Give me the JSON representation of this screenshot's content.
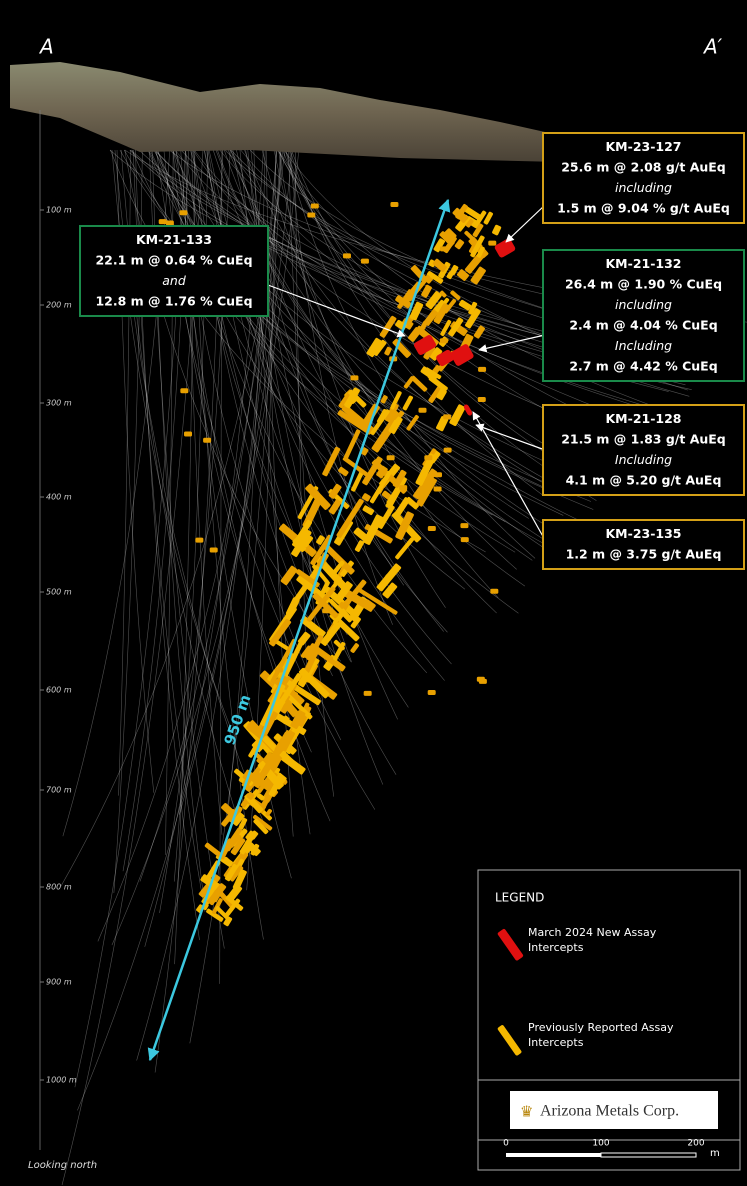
{
  "section_labels": {
    "left": "A",
    "right": "A′"
  },
  "depth_labels": [
    "100 m",
    "200 m",
    "300 m",
    "400 m",
    "500 m",
    "600 m",
    "700 m",
    "800 m",
    "900 m",
    "1000 m"
  ],
  "measure": "950 m",
  "callouts": [
    {
      "hole": "KM-21-133",
      "lines": [
        "22.1 m @ 0.64 % CuEq",
        "and",
        "12.8 m @ 1.76 % CuEq"
      ]
    },
    {
      "hole": "KM-23-127",
      "lines": [
        "25.6 m @ 2.08 g/t AuEq",
        "including",
        "1.5 m @ 9.04 % g/t AuEq"
      ]
    },
    {
      "hole": "KM-21-132",
      "lines": [
        "26.4 m @ 1.90 % CuEq",
        "including",
        "2.4 m @ 4.04 % CuEq",
        "Including",
        "2.7 m @ 4.42 % CuEq"
      ]
    },
    {
      "hole": "KM-21-128",
      "lines": [
        "21.5 m @ 1.83 g/t AuEq",
        "Including",
        "4.1 m @ 5.20 g/t AuEq"
      ]
    },
    {
      "hole": "KM-23-135",
      "lines": [
        "1.2 m @ 3.75 g/t AuEq"
      ]
    }
  ],
  "legend": {
    "title": "LEGEND",
    "items": [
      "March 2024 New Assay Intercepts",
      "Previously Reported Assay Intercepts"
    ]
  },
  "logo": "Arizona Metals Corp.",
  "scale_bar": {
    "labels": [
      "0",
      "100",
      "200"
    ],
    "unit": "m"
  },
  "footer": "Looking north"
}
